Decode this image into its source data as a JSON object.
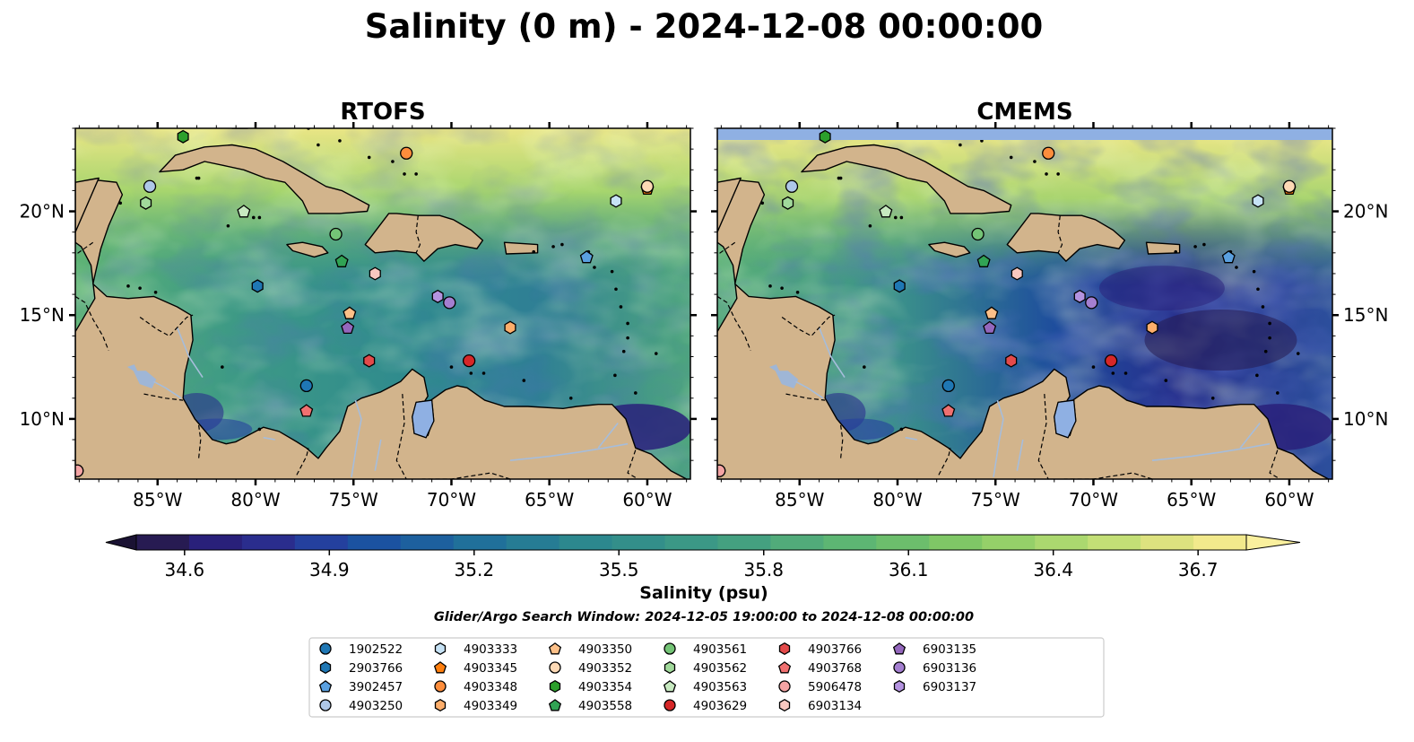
{
  "title": "Salinity (0 m) - 2024-12-08 00:00:00",
  "panels": [
    {
      "title": "RTOFS",
      "land_color": "#d2b48c",
      "ocean_palette": "rtofs"
    },
    {
      "title": "CMEMS",
      "land_color": "#d2b48c",
      "ocean_palette": "cmems",
      "no_data_band": "#8fb0e3"
    }
  ],
  "map": {
    "lon_range": [
      -89.2,
      -57.8
    ],
    "lat_range": [
      7.1,
      24.0
    ],
    "lon_ticks": [
      -85,
      -80,
      -75,
      -70,
      -65,
      -60
    ],
    "lon_tick_labels": [
      "85°W",
      "80°W",
      "75°W",
      "70°W",
      "65°W",
      "60°W"
    ],
    "lat_ticks": [
      10,
      15,
      20
    ],
    "lat_tick_labels": [
      "10°N",
      "15°N",
      "20°N"
    ]
  },
  "colorbar": {
    "min": 34.5,
    "max": 36.8,
    "ticks": [
      34.6,
      34.9,
      35.2,
      35.5,
      35.8,
      36.1,
      36.4,
      36.7
    ],
    "tick_labels": [
      "34.6",
      "34.9",
      "35.2",
      "35.5",
      "35.8",
      "36.1",
      "36.4",
      "36.7"
    ],
    "label": "Salinity (psu)",
    "colors": [
      "#271b52",
      "#29207a",
      "#2a2d8d",
      "#24409e",
      "#1b52a0",
      "#1d609e",
      "#20709a",
      "#267c94",
      "#2c888e",
      "#338f8a",
      "#3b9886",
      "#44a080",
      "#51ab7a",
      "#5db673",
      "#6cbe6c",
      "#7fc766",
      "#95d069",
      "#abd86f",
      "#c3df76",
      "#dde27f",
      "#f2e98c"
    ]
  },
  "search_window": "Glider/Argo Search Window: 2024-12-05 19:00:00 to 2024-12-08 00:00:00",
  "floats": [
    {
      "id": "1902522",
      "marker": "circle",
      "color": "#1f77b4",
      "lon": -77.4,
      "lat": 11.6
    },
    {
      "id": "2903766",
      "marker": "hexagon",
      "color": "#1f77b4",
      "lon": -79.9,
      "lat": 16.4
    },
    {
      "id": "3902457",
      "marker": "pentagon",
      "color": "#5aa0e0",
      "lon": -63.1,
      "lat": 17.8
    },
    {
      "id": "4903250",
      "marker": "circle",
      "color": "#aec7e8",
      "lon": -89.1,
      "lat": 7.5
    },
    {
      "id": "4903333",
      "marker": "hexagon",
      "color": "#c6e2f5",
      "lon": -61.6,
      "lat": 20.5
    },
    {
      "id": "4903345",
      "marker": "pentagon",
      "color": "#ff7f0e",
      "lon": -60.0,
      "lat": 21.1
    },
    {
      "id": "4903348",
      "marker": "circle",
      "color": "#fd8d3c",
      "lon": -72.3,
      "lat": 22.8
    },
    {
      "id": "4903349",
      "marker": "hexagon",
      "color": "#fdae6b",
      "lon": -67.0,
      "lat": 14.4
    },
    {
      "id": "4903350",
      "marker": "pentagon",
      "color": "#fdc088",
      "lon": -75.2,
      "lat": 15.1
    },
    {
      "id": "4903352",
      "marker": "circle",
      "color": "#fdd9b5",
      "lon": -60.0,
      "lat": 21.2
    },
    {
      "id": "4903354",
      "marker": "hexagon",
      "color": "#2ca02c",
      "lon": -83.7,
      "lat": 23.6
    },
    {
      "id": "4903558",
      "marker": "pentagon",
      "color": "#31a354",
      "lon": -75.6,
      "lat": 17.6
    },
    {
      "id": "4903561",
      "marker": "circle",
      "color": "#74c476",
      "lon": -75.9,
      "lat": 18.9
    },
    {
      "id": "4903562",
      "marker": "hexagon",
      "color": "#a1d99b",
      "lon": -85.6,
      "lat": 20.4
    },
    {
      "id": "4903563",
      "marker": "pentagon",
      "color": "#c7e9c0",
      "lon": -80.6,
      "lat": 20.0
    },
    {
      "id": "4903629",
      "marker": "circle",
      "color": "#d62728",
      "lon": -69.1,
      "lat": 12.8
    },
    {
      "id": "4903766",
      "marker": "hexagon",
      "color": "#e34a4a",
      "lon": -74.2,
      "lat": 12.8
    },
    {
      "id": "4903768",
      "marker": "pentagon",
      "color": "#f07070",
      "lon": -77.4,
      "lat": 10.4
    },
    {
      "id": "5906478",
      "marker": "circle",
      "color": "#f4a4a4",
      "lon": -89.1,
      "lat": 7.5
    },
    {
      "id": "6903134",
      "marker": "hexagon",
      "color": "#f8c8c0",
      "lon": -73.9,
      "lat": 17.0
    },
    {
      "id": "6903135",
      "marker": "pentagon",
      "color": "#9467bd",
      "lon": -75.3,
      "lat": 14.4
    },
    {
      "id": "6903136",
      "marker": "circle",
      "color": "#a47fd0",
      "lon": -70.1,
      "lat": 15.6
    },
    {
      "id": "6903137",
      "marker": "hexagon",
      "color": "#b493e0",
      "lon": -70.7,
      "lat": 15.9
    },
    {
      "id": "4903250",
      "marker": "circle",
      "color": "#aec7e8",
      "lon": -85.4,
      "lat": 21.2
    }
  ]
}
